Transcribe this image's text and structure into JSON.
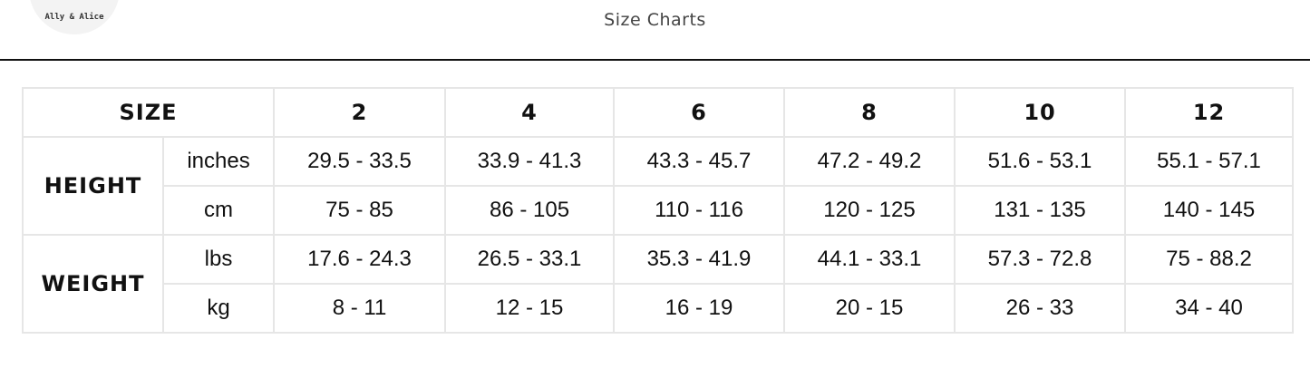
{
  "logo": {
    "text": "Ally & Alice"
  },
  "header": {
    "title": "Size Charts"
  },
  "table": {
    "size_label": "SIZE",
    "sizes": [
      "2",
      "4",
      "6",
      "8",
      "10",
      "12"
    ],
    "groups": [
      {
        "label": "HEIGHT",
        "rows": [
          {
            "unit": "inches",
            "values": [
              "29.5 - 33.5",
              "33.9 - 41.3",
              "43.3 - 45.7",
              "47.2 - 49.2",
              "51.6 - 53.1",
              "55.1 - 57.1"
            ]
          },
          {
            "unit": "cm",
            "values": [
              "75 - 85",
              "86 - 105",
              "110 - 116",
              "120 - 125",
              "131 - 135",
              "140 - 145"
            ]
          }
        ]
      },
      {
        "label": "WEIGHT",
        "rows": [
          {
            "unit": "lbs",
            "values": [
              "17.6 - 24.3",
              "26.5 - 33.1",
              "35.3 - 41.9",
              "44.1 - 33.1",
              "57.3 - 72.8",
              "75 - 88.2"
            ]
          },
          {
            "unit": "kg",
            "values": [
              "8 - 11",
              "12 - 15",
              "16 - 19",
              "20 - 15",
              "26 - 33",
              "34 - 40"
            ]
          }
        ]
      }
    ]
  }
}
